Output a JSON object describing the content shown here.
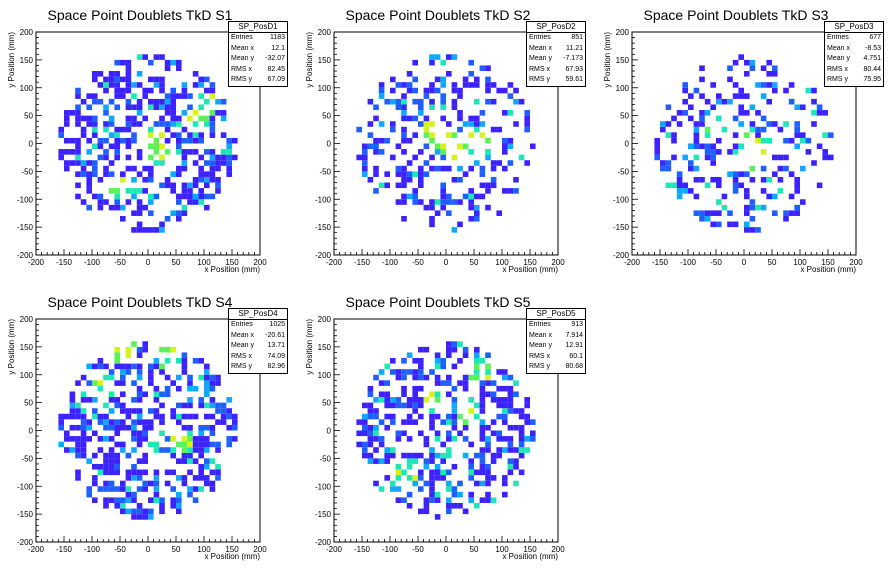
{
  "chart_data": [
    {
      "type": "heatmap",
      "title": "Space Point Doublets TkD S1",
      "xlabel": "x Position (mm)",
      "ylabel": "y Position (mm)",
      "xlim": [
        -200,
        200
      ],
      "ylim": [
        -200,
        200
      ],
      "ticks": [
        -200,
        -150,
        -100,
        -50,
        0,
        50,
        100,
        150,
        200
      ],
      "stats": {
        "name": "SP_PosD1",
        "rows": [
          [
            "Entries",
            "1183"
          ],
          [
            "Mean x",
            "12.1"
          ],
          [
            "Mean y",
            "-32.07"
          ],
          [
            "RMS x",
            "82.45"
          ],
          [
            "RMS y",
            "67.09"
          ]
        ]
      },
      "seed": 11,
      "density": 0.48,
      "hot": [
        [
          10,
          10
        ],
        [
          20,
          -15
        ],
        [
          90,
          40
        ],
        [
          100,
          70
        ],
        [
          -60,
          -80
        ]
      ]
    },
    {
      "type": "heatmap",
      "title": "Space Point Doublets TkD S2",
      "xlabel": "x Position (mm)",
      "ylabel": "y Position (mm)",
      "xlim": [
        -200,
        200
      ],
      "ylim": [
        -200,
        200
      ],
      "ticks": [
        -200,
        -150,
        -100,
        -50,
        0,
        50,
        100,
        150,
        200
      ],
      "stats": {
        "name": "SP_PosD2",
        "rows": [
          [
            "Entries",
            "851"
          ],
          [
            "Mean x",
            "11.21"
          ],
          [
            "Mean y",
            "-7.173"
          ],
          [
            "RMS x",
            "67.93"
          ],
          [
            "RMS y",
            "59.61"
          ]
        ]
      },
      "seed": 23,
      "density": 0.3,
      "hot": [
        [
          -20,
          25
        ],
        [
          0,
          5
        ],
        [
          15,
          -5
        ],
        [
          30,
          -15
        ],
        [
          60,
          10
        ]
      ]
    },
    {
      "type": "heatmap",
      "title": "Space Point Doublets TkD S3",
      "xlabel": "x Position (mm)",
      "ylabel": "y Position (mm)",
      "xlim": [
        -200,
        200
      ],
      "ylim": [
        -200,
        200
      ],
      "ticks": [
        -200,
        -150,
        -100,
        -50,
        0,
        50,
        100,
        150,
        200
      ],
      "stats": {
        "name": "SP_PosD3",
        "rows": [
          [
            "Entries",
            "677"
          ],
          [
            "Mean x",
            "-8.53"
          ],
          [
            "Mean y",
            "4.751"
          ],
          [
            "RMS x",
            "80.44"
          ],
          [
            "RMS y",
            "75.95"
          ]
        ]
      },
      "seed": 37,
      "density": 0.3,
      "hot": [
        [
          0,
          -30
        ],
        [
          10,
          -5
        ],
        [
          50,
          0
        ],
        [
          -50,
          30
        ]
      ]
    },
    {
      "type": "heatmap",
      "title": "Space Point Doublets TkD S4",
      "xlabel": "x Position (mm)",
      "ylabel": "y Position (mm)",
      "xlim": [
        -200,
        200
      ],
      "ylim": [
        -200,
        200
      ],
      "ticks": [
        -200,
        -150,
        -100,
        -50,
        0,
        50,
        100,
        150,
        200
      ],
      "stats": {
        "name": "SP_PosD4",
        "rows": [
          [
            "Entries",
            "1025"
          ],
          [
            "Mean x",
            "-20.61"
          ],
          [
            "Mean y",
            "13.71"
          ],
          [
            "RMS x",
            "74.09"
          ],
          [
            "RMS y",
            "82.96"
          ]
        ]
      },
      "seed": 51,
      "density": 0.46,
      "hot": [
        [
          -80,
          80
        ],
        [
          -60,
          140
        ],
        [
          -40,
          140
        ],
        [
          40,
          130
        ],
        [
          60,
          -20
        ]
      ]
    },
    {
      "type": "heatmap",
      "title": "Space Point Doublets TkD S5",
      "xlabel": "x Position (mm)",
      "ylabel": "y Position (mm)",
      "xlim": [
        -200,
        200
      ],
      "ylim": [
        -200,
        200
      ],
      "ticks": [
        -200,
        -150,
        -100,
        -50,
        0,
        50,
        100,
        150,
        200
      ],
      "stats": {
        "name": "SP_PosD5",
        "rows": [
          [
            "Entries",
            "913"
          ],
          [
            "Mean x",
            "7.914"
          ],
          [
            "Mean y",
            "12.91"
          ],
          [
            "RMS x",
            "60.1"
          ],
          [
            "RMS y",
            "80.68"
          ]
        ]
      },
      "seed": 67,
      "density": 0.42,
      "hot": [
        [
          60,
          110
        ],
        [
          -20,
          50
        ],
        [
          40,
          30
        ],
        [
          -70,
          -70
        ]
      ]
    }
  ],
  "palette": [
    "#3b22ff",
    "#1f5fff",
    "#10a8ff",
    "#1ee6b4",
    "#5cf05a",
    "#d7f21f",
    "#ff9f0f",
    "#ff2a0a"
  ]
}
